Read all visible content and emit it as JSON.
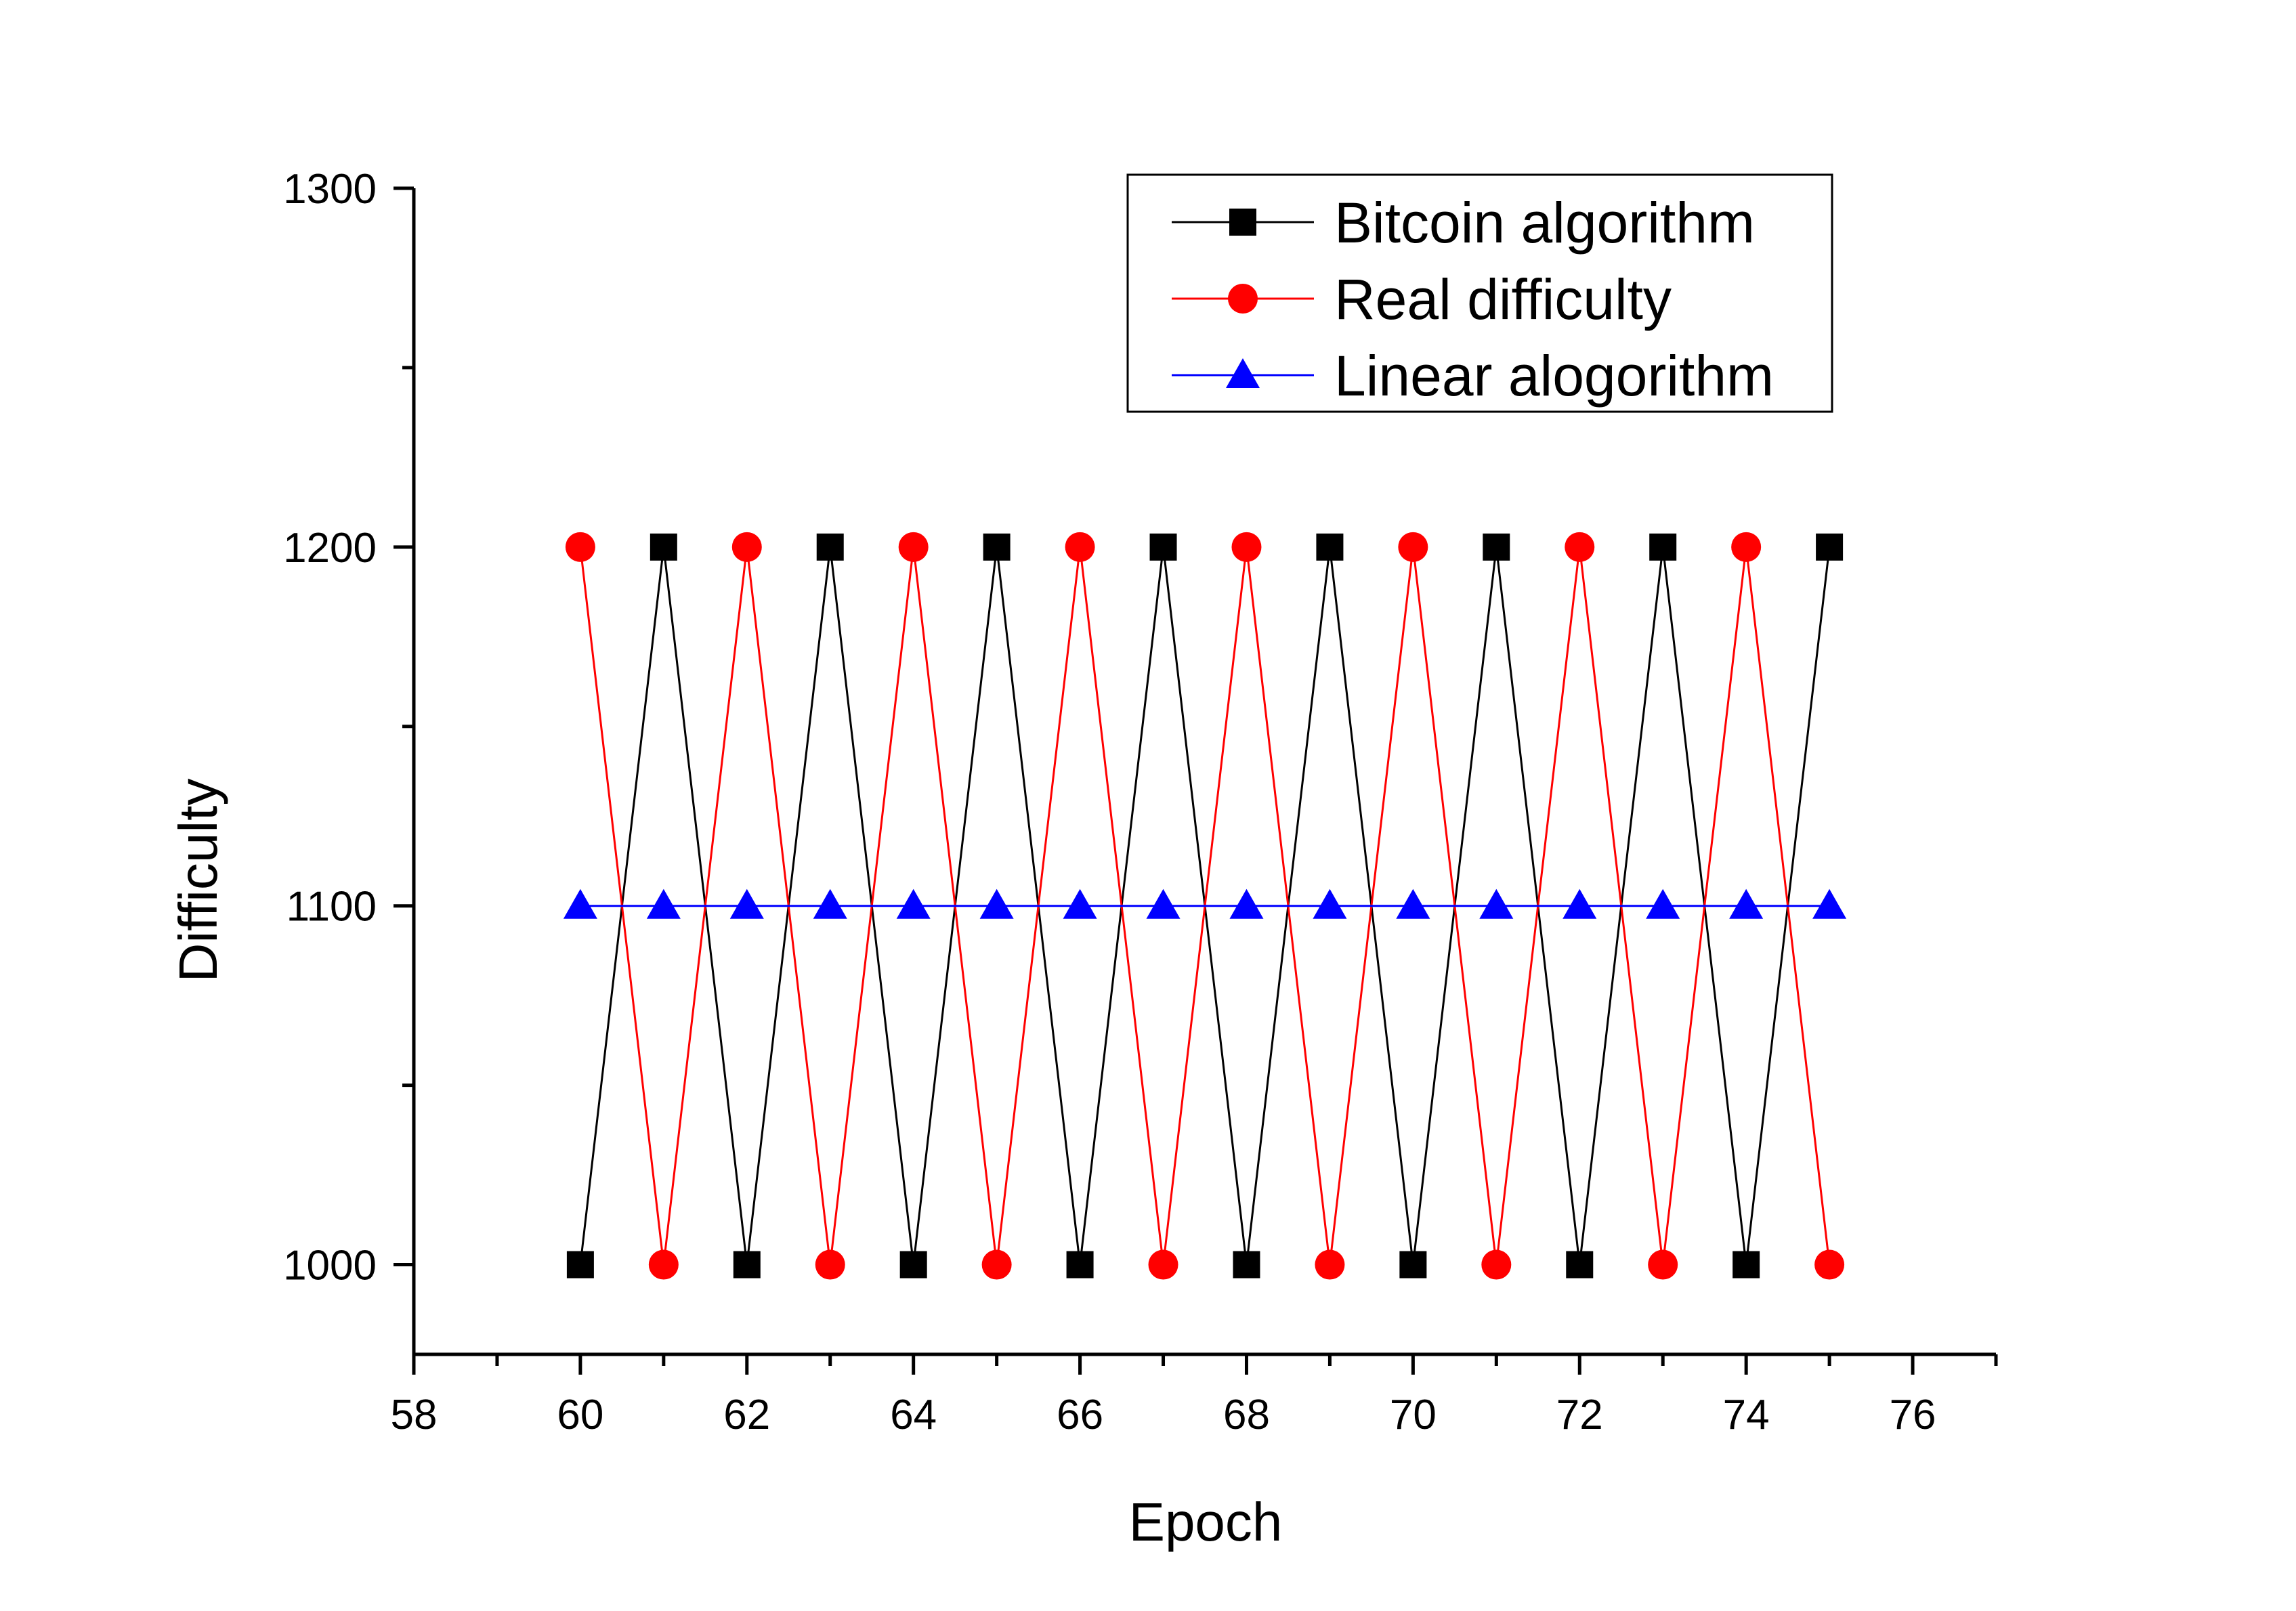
{
  "chart_data": {
    "type": "line",
    "xlabel": "Epoch",
    "ylabel": "Difficulty",
    "xlim": [
      58,
      77
    ],
    "ylim": [
      975,
      1300
    ],
    "x_ticks": [
      58,
      60,
      62,
      64,
      66,
      68,
      70,
      72,
      74,
      76
    ],
    "y_ticks": [
      1000,
      1100,
      1200,
      1300
    ],
    "legend_position": "top-right",
    "grid": false,
    "x": [
      60,
      61,
      62,
      63,
      64,
      65,
      66,
      67,
      68,
      69,
      70,
      71,
      72,
      73,
      74,
      75
    ],
    "series": [
      {
        "name": "Bitcoin algorithm",
        "color": "#000000",
        "marker": "square",
        "values": [
          1000,
          1200,
          1000,
          1200,
          1000,
          1200,
          1000,
          1200,
          1000,
          1200,
          1000,
          1200,
          1000,
          1200,
          1000,
          1200
        ]
      },
      {
        "name": "Real difficulty",
        "color": "#ff0000",
        "marker": "circle",
        "values": [
          1200,
          1000,
          1200,
          1000,
          1200,
          1000,
          1200,
          1000,
          1200,
          1000,
          1200,
          1000,
          1200,
          1000,
          1200,
          1000
        ]
      },
      {
        "name": "Linear alogorithm",
        "color": "#0000ff",
        "marker": "triangle",
        "values": [
          1100,
          1100,
          1100,
          1100,
          1100,
          1100,
          1100,
          1100,
          1100,
          1100,
          1100,
          1100,
          1100,
          1100,
          1100,
          1100
        ]
      }
    ]
  }
}
